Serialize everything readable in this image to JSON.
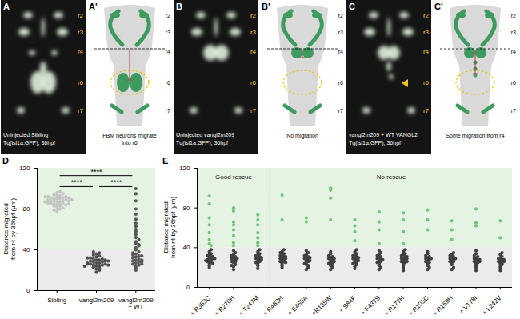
{
  "images": [
    {
      "letter": "A",
      "labels": [
        "r2",
        "r3",
        "r4",
        "r6",
        "r7"
      ],
      "caption": [
        "Uninjected Sibling",
        "Tg(isl1a:GFP), 36hpf"
      ]
    },
    {
      "letter": "B",
      "labels": [
        "r2",
        "r3",
        "r4",
        "r6",
        "r7"
      ],
      "caption": [
        "Uninjected vangl2m209",
        "Tg(isl1a:GFP), 36hpf"
      ]
    },
    {
      "letter": "C",
      "labels": [
        "r2",
        "r3",
        "r4",
        "r6",
        "r7"
      ],
      "caption": [
        "vangl2m209 + WT VANGL2",
        "Tg(isl1a:GFP), 36hpf"
      ]
    }
  ],
  "schematics": [
    {
      "letter": "A'",
      "labels": [
        "r2",
        "r3",
        "r4",
        "r6",
        "r7"
      ],
      "text": "FBM neurons migrate into r6"
    },
    {
      "letter": "B'",
      "labels": [
        "r2",
        "r3",
        "r4",
        "r6",
        "r7"
      ],
      "text": "No migration"
    },
    {
      "letter": "C'",
      "labels": [
        "r2",
        "r3",
        "r4",
        "r6",
        "r7"
      ],
      "text": "Some migration from r4"
    }
  ],
  "chart_data": [
    {
      "type": "scatter",
      "panel_label": "D",
      "y_label": "Distance migrated from r4 by 36hpf (μm)",
      "categories": [
        "Sibling",
        "vangl2m209",
        "vangl2m209 + WT"
      ],
      "colors": [
        "#c4c4c4",
        "#4d4d4d",
        "#555555"
      ],
      "values": [
        [
          78,
          80,
          82,
          83,
          84,
          85,
          85,
          86,
          86,
          87,
          87,
          88,
          88,
          88,
          89,
          89,
          90,
          90,
          90,
          91,
          91,
          92,
          92,
          93,
          93,
          94,
          95,
          96,
          97,
          84,
          83,
          86,
          81,
          79,
          88,
          91,
          87,
          85,
          89,
          92
        ],
        [
          18,
          20,
          21,
          22,
          23,
          24,
          24,
          25,
          25,
          26,
          26,
          27,
          27,
          28,
          28,
          29,
          29,
          30,
          30,
          31,
          31,
          32,
          33,
          34,
          35,
          36,
          37,
          38,
          26,
          27,
          30,
          25,
          29,
          32,
          24
        ],
        [
          20,
          22,
          24,
          25,
          26,
          27,
          28,
          29,
          30,
          31,
          32,
          33,
          34,
          35,
          36,
          38,
          40,
          42,
          44,
          46,
          48,
          50,
          52,
          55,
          58,
          60,
          63,
          66,
          70,
          75,
          80,
          88,
          95,
          100,
          30,
          28,
          34,
          37,
          26,
          45
        ]
      ],
      "ylim": [
        0,
        120
      ],
      "yticks": [
        0,
        40,
        80,
        120
      ],
      "grid": false,
      "bands": [
        {
          "from": 0,
          "to": 40,
          "color": "#ebebeb"
        },
        {
          "from": 40,
          "to": 120,
          "color": "#e4f3e2"
        }
      ],
      "annotations": [
        {
          "from": 0,
          "to": 1,
          "label": "****"
        },
        {
          "from": 1,
          "to": 2,
          "label": "****"
        },
        {
          "from": 0,
          "to": 2,
          "label": "****"
        }
      ]
    },
    {
      "type": "scatter",
      "panel_label": "E",
      "y_label": "Distance migrated from r4 by 36hpf (μm)",
      "categories": [
        "+ R353C",
        "+ R270H",
        "+ T247M",
        "+ R482H",
        "+ E465A",
        "+R135W",
        "+ S84F",
        "+ F437S",
        "+ R177H",
        "+ R105C",
        "+ R169H",
        "+ V178I",
        "+ L242V"
      ],
      "values": [
        [
          92,
          84,
          70,
          63,
          55,
          48,
          44,
          42,
          20,
          22,
          24,
          25,
          26,
          27,
          28,
          28,
          29,
          30,
          31,
          32,
          33,
          34,
          36,
          38,
          24,
          27,
          29,
          31
        ],
        [
          80,
          77,
          66,
          63,
          58,
          52,
          45,
          42,
          18,
          21,
          23,
          25,
          26,
          27,
          28,
          29,
          30,
          31,
          32,
          33,
          35,
          37,
          22,
          26,
          29
        ],
        [
          73,
          68,
          63,
          55,
          50,
          45,
          42,
          19,
          22,
          24,
          26,
          27,
          28,
          29,
          30,
          31,
          32,
          33,
          34,
          36,
          38,
          25,
          28,
          30
        ],
        [
          93,
          68,
          20,
          22,
          24,
          26,
          27,
          28,
          29,
          30,
          31,
          32,
          33,
          34,
          35,
          36,
          38,
          26,
          29,
          31,
          25
        ],
        [
          70,
          66,
          18,
          20,
          23,
          25,
          26,
          27,
          28,
          29,
          30,
          31,
          32,
          33,
          35,
          37,
          24,
          27,
          30,
          22
        ],
        [
          100,
          98,
          90,
          68,
          18,
          20,
          22,
          23,
          25,
          26,
          27,
          28,
          29,
          30,
          31,
          32,
          34,
          36,
          24,
          26,
          29
        ],
        [
          68,
          62,
          56,
          47,
          19,
          21,
          23,
          25,
          26,
          27,
          28,
          29,
          30,
          31,
          32,
          33,
          34,
          36,
          38,
          24,
          27,
          30
        ],
        [
          76,
          66,
          58,
          44,
          18,
          20,
          22,
          24,
          26,
          27,
          28,
          29,
          30,
          31,
          32,
          33,
          35,
          37,
          25,
          28
        ],
        [
          75,
          68,
          56,
          44,
          17,
          20,
          22,
          24,
          25,
          26,
          27,
          28,
          29,
          30,
          31,
          32,
          33,
          34,
          36,
          38,
          26,
          29,
          31
        ],
        [
          78,
          68,
          58,
          18,
          20,
          22,
          24,
          25,
          27,
          28,
          29,
          30,
          31,
          32,
          34,
          36,
          26,
          29
        ],
        [
          67,
          58,
          48,
          18,
          20,
          23,
          25,
          26,
          27,
          28,
          29,
          30,
          31,
          32,
          33,
          35,
          26,
          29
        ],
        [
          79,
          65,
          62,
          17,
          20,
          22,
          24,
          25,
          26,
          27,
          28,
          29,
          30,
          31,
          32,
          34,
          37,
          26,
          28
        ],
        [
          67,
          50,
          17,
          19,
          21,
          23,
          24,
          25,
          26,
          27,
          28,
          29,
          30,
          31,
          33,
          35,
          26,
          28
        ]
      ],
      "ylim": [
        0,
        120
      ],
      "yticks": [
        0,
        40,
        80,
        120
      ],
      "grid": false,
      "bands": [
        {
          "from": 0,
          "to": 40,
          "color": "#ebebeb",
          "point_color": "#3f3f3f"
        },
        {
          "from": 40,
          "to": 120,
          "color": "#e4f3e2",
          "point_color": "#72c47a"
        }
      ],
      "groups": [
        {
          "label": "Good rescue",
          "start": 0,
          "end": 2
        },
        {
          "label": "No rescue",
          "start": 3,
          "end": 12
        }
      ]
    }
  ]
}
